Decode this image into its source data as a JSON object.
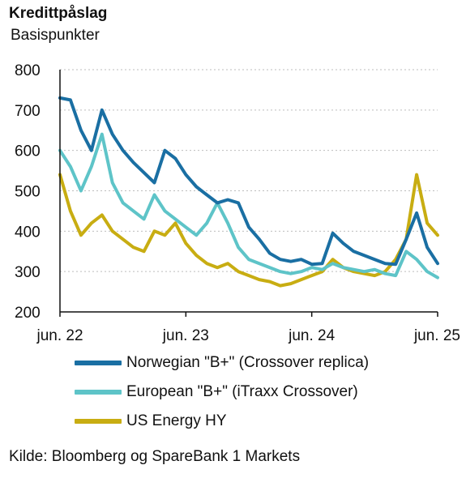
{
  "title": "Kredittpåslag",
  "subtitle": "Basispunkter",
  "source": "Kilde: Bloomberg og SpareBank 1 Markets",
  "chart_data": {
    "type": "line",
    "title": "Kredittpåslag",
    "ylabel": "Basispunkter",
    "ylim": [
      200,
      800
    ],
    "yticks": [
      200,
      300,
      400,
      500,
      600,
      700,
      800
    ],
    "xlim": [
      "2022-06",
      "2025-06"
    ],
    "xticks": [
      "jun. 22",
      "jun. 23",
      "jun. 24",
      "jun. 25"
    ],
    "grid": "horizontal dotted",
    "legend_position": "bottom",
    "series": [
      {
        "name": "Norwegian \"B+\" (Crossover replica)",
        "color": "#1a6fa3",
        "points": [
          [
            "2022-06",
            730
          ],
          [
            "2022-07",
            725
          ],
          [
            "2022-08",
            650
          ],
          [
            "2022-09",
            600
          ],
          [
            "2022-10",
            700
          ],
          [
            "2022-11",
            640
          ],
          [
            "2022-12",
            600
          ],
          [
            "2023-01",
            570
          ],
          [
            "2023-02",
            545
          ],
          [
            "2023-03",
            520
          ],
          [
            "2023-04",
            600
          ],
          [
            "2023-05",
            580
          ],
          [
            "2023-06",
            540
          ],
          [
            "2023-07",
            510
          ],
          [
            "2023-08",
            490
          ],
          [
            "2023-09",
            470
          ],
          [
            "2023-10",
            478
          ],
          [
            "2023-11",
            470
          ],
          [
            "2023-12",
            410
          ],
          [
            "2024-01",
            380
          ],
          [
            "2024-02",
            345
          ],
          [
            "2024-03",
            330
          ],
          [
            "2024-04",
            325
          ],
          [
            "2024-05",
            330
          ],
          [
            "2024-06",
            318
          ],
          [
            "2024-07",
            320
          ],
          [
            "2024-08",
            395
          ],
          [
            "2024-09",
            370
          ],
          [
            "2024-10",
            350
          ],
          [
            "2024-11",
            340
          ],
          [
            "2024-12",
            330
          ],
          [
            "2025-01",
            320
          ],
          [
            "2025-02",
            318
          ],
          [
            "2025-03",
            380
          ],
          [
            "2025-04",
            445
          ],
          [
            "2025-05",
            360
          ],
          [
            "2025-06",
            320
          ]
        ]
      },
      {
        "name": "European \"B+\" (iTraxx Crossover)",
        "color": "#5ec4c8",
        "points": [
          [
            "2022-06",
            600
          ],
          [
            "2022-07",
            560
          ],
          [
            "2022-08",
            500
          ],
          [
            "2022-09",
            560
          ],
          [
            "2022-10",
            640
          ],
          [
            "2022-11",
            520
          ],
          [
            "2022-12",
            470
          ],
          [
            "2023-01",
            450
          ],
          [
            "2023-02",
            430
          ],
          [
            "2023-03",
            490
          ],
          [
            "2023-04",
            450
          ],
          [
            "2023-05",
            430
          ],
          [
            "2023-06",
            410
          ],
          [
            "2023-07",
            390
          ],
          [
            "2023-08",
            420
          ],
          [
            "2023-09",
            470
          ],
          [
            "2023-10",
            420
          ],
          [
            "2023-11",
            360
          ],
          [
            "2023-12",
            330
          ],
          [
            "2024-01",
            320
          ],
          [
            "2024-02",
            310
          ],
          [
            "2024-03",
            300
          ],
          [
            "2024-04",
            295
          ],
          [
            "2024-05",
            300
          ],
          [
            "2024-06",
            310
          ],
          [
            "2024-07",
            305
          ],
          [
            "2024-08",
            320
          ],
          [
            "2024-09",
            310
          ],
          [
            "2024-10",
            305
          ],
          [
            "2024-11",
            300
          ],
          [
            "2024-12",
            305
          ],
          [
            "2025-01",
            295
          ],
          [
            "2025-02",
            290
          ],
          [
            "2025-03",
            350
          ],
          [
            "2025-04",
            330
          ],
          [
            "2025-05",
            300
          ],
          [
            "2025-06",
            285
          ]
        ]
      },
      {
        "name": "US Energy HY",
        "color": "#c8ad12",
        "points": [
          [
            "2022-06",
            540
          ],
          [
            "2022-07",
            450
          ],
          [
            "2022-08",
            390
          ],
          [
            "2022-09",
            420
          ],
          [
            "2022-10",
            440
          ],
          [
            "2022-11",
            400
          ],
          [
            "2022-12",
            380
          ],
          [
            "2023-01",
            360
          ],
          [
            "2023-02",
            350
          ],
          [
            "2023-03",
            400
          ],
          [
            "2023-04",
            390
          ],
          [
            "2023-05",
            420
          ],
          [
            "2023-06",
            370
          ],
          [
            "2023-07",
            340
          ],
          [
            "2023-08",
            320
          ],
          [
            "2023-09",
            310
          ],
          [
            "2023-10",
            320
          ],
          [
            "2023-11",
            300
          ],
          [
            "2023-12",
            290
          ],
          [
            "2024-01",
            280
          ],
          [
            "2024-02",
            275
          ],
          [
            "2024-03",
            265
          ],
          [
            "2024-04",
            270
          ],
          [
            "2024-05",
            280
          ],
          [
            "2024-06",
            290
          ],
          [
            "2024-07",
            300
          ],
          [
            "2024-08",
            330
          ],
          [
            "2024-09",
            310
          ],
          [
            "2024-10",
            300
          ],
          [
            "2024-11",
            295
          ],
          [
            "2024-12",
            290
          ],
          [
            "2025-01",
            300
          ],
          [
            "2025-02",
            330
          ],
          [
            "2025-03",
            380
          ],
          [
            "2025-04",
            540
          ],
          [
            "2025-05",
            420
          ],
          [
            "2025-06",
            390
          ]
        ]
      }
    ]
  }
}
